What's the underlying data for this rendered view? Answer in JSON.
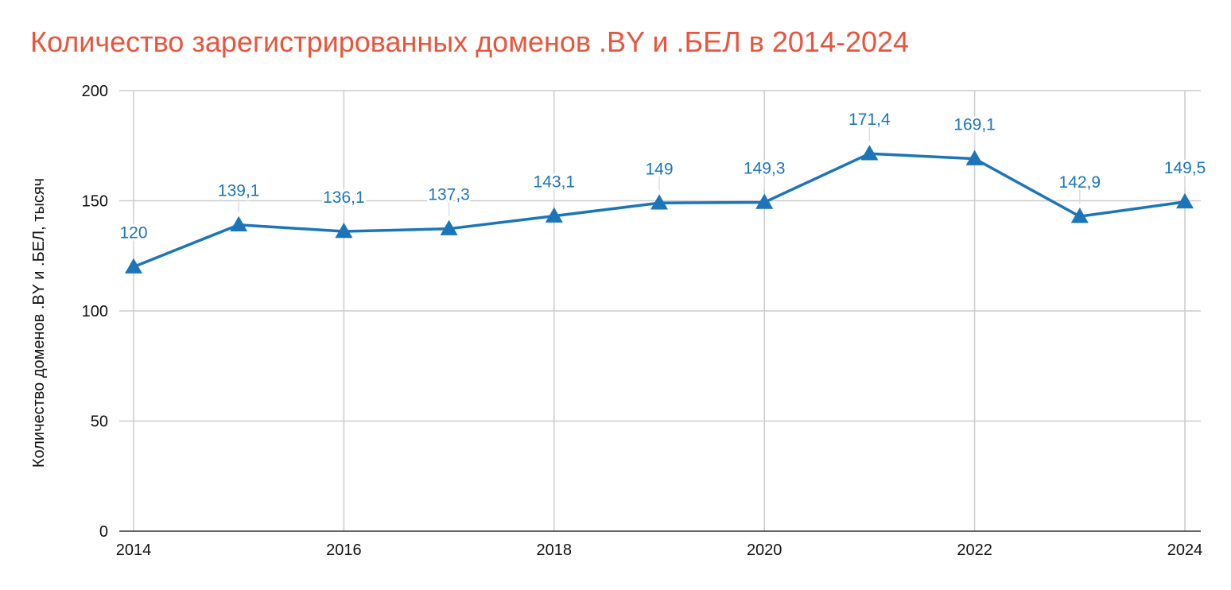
{
  "chart_data": {
    "type": "line",
    "title": "Количество зарегистрированных доменов .BY и .БЕЛ в 2014-2024",
    "xlabel": "",
    "ylabel": "Количество доменов .BY и .БЕЛ, тысяч",
    "x": [
      2014,
      2015,
      2016,
      2017,
      2018,
      2019,
      2020,
      2021,
      2022,
      2023,
      2024
    ],
    "x_tick_labels": [
      "2014",
      "2016",
      "2018",
      "2020",
      "2022",
      "2024"
    ],
    "x_ticks": [
      2014,
      2016,
      2018,
      2020,
      2022,
      2024
    ],
    "xlim": [
      2014,
      2024
    ],
    "y_tick_labels": [
      "0",
      "50",
      "100",
      "150",
      "200"
    ],
    "y_ticks": [
      0,
      50,
      100,
      150,
      200
    ],
    "ylim": [
      0,
      200
    ],
    "grid": true,
    "legend": "none",
    "marker": "triangle",
    "series": [
      {
        "values": [
          120,
          139.1,
          136.1,
          137.3,
          143.1,
          149,
          149.3,
          171.4,
          169.1,
          142.9,
          149.5
        ],
        "data_labels": [
          "120",
          "139,1",
          "136,1",
          "137,3",
          "143,1",
          "149",
          "149,3",
          "171,4",
          "169,1",
          "142,9",
          "149,5"
        ],
        "color": "#1b75b8"
      }
    ],
    "title_color": "#e9553c",
    "grid_color": "#cccccc",
    "axis_color": "#333333"
  }
}
